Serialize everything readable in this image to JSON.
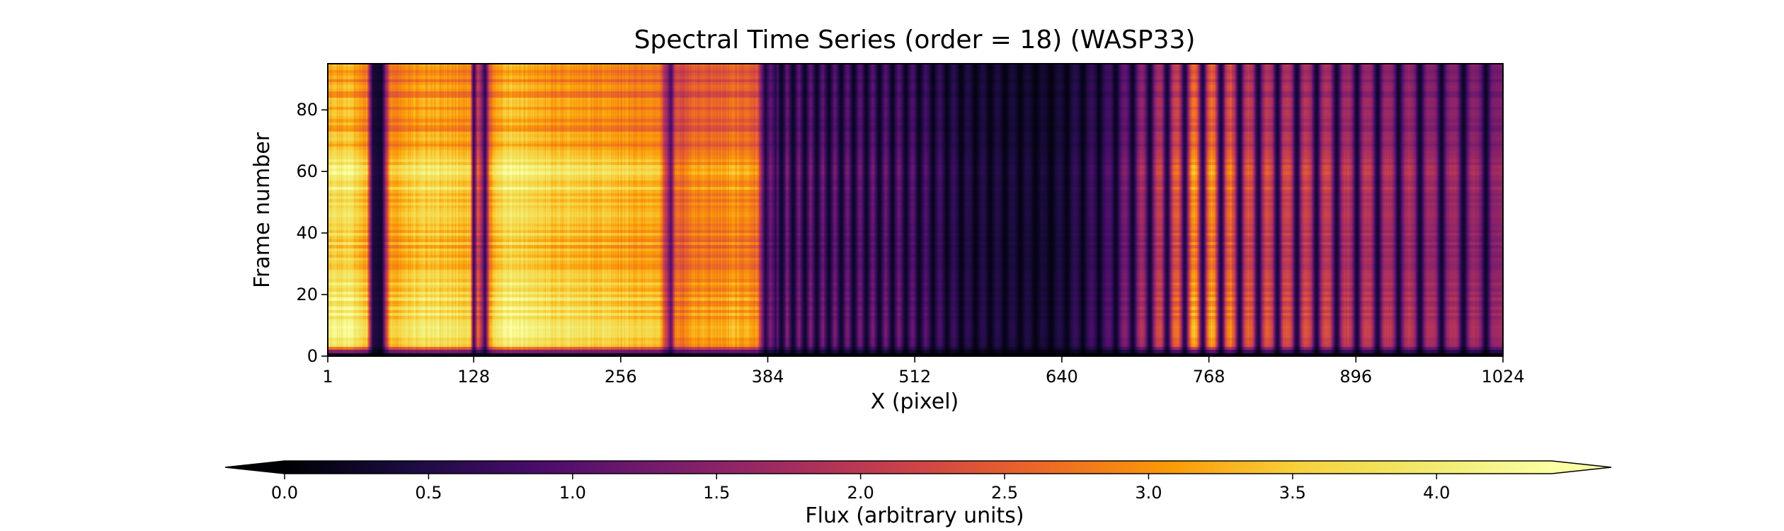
{
  "chart_data": {
    "type": "heatmap",
    "title": "Spectral Time Series (order = 18) (WASP33)",
    "xlabel": "X (pixel)",
    "ylabel": "Frame number",
    "xlim": [
      1,
      1024
    ],
    "ylim": [
      0,
      95
    ],
    "xticks": [
      1,
      128,
      256,
      384,
      512,
      640,
      768,
      896,
      1024
    ],
    "yticks": [
      0,
      20,
      40,
      60,
      80
    ],
    "colormap": "inferno",
    "colorbar": {
      "label": "Flux (arbitrary units)",
      "range": [
        0.0,
        4.4
      ],
      "ticks": [
        "0.0",
        "0.5",
        "1.0",
        "1.5",
        "2.0",
        "2.5",
        "3.0",
        "3.5",
        "4.0"
      ],
      "extend": "both",
      "orientation": "horizontal"
    },
    "flux_profile_x": [
      1,
      20,
      35,
      40,
      48,
      55,
      70,
      100,
      125,
      128,
      132,
      138,
      142,
      148,
      160,
      200,
      240,
      260,
      290,
      300,
      304,
      308,
      320,
      340,
      360,
      375,
      382,
      386,
      392
    ],
    "flux_profile_value": [
      3.9,
      4.0,
      3.5,
      0.5,
      0.3,
      3.3,
      3.7,
      3.8,
      3.6,
      0.6,
      2.7,
      0.7,
      3.0,
      3.8,
      4.1,
      3.7,
      3.6,
      3.5,
      3.4,
      1.0,
      2.9,
      2.6,
      3.1,
      3.0,
      3.2,
      2.9,
      0.4,
      1.4,
      0.5
    ],
    "line_region": {
      "x_start": 392,
      "x_end": 1024,
      "line_spacing_start": 10,
      "line_spacing_end": 20,
      "continuum_flux": [
        [
          392,
          1.6
        ],
        [
          500,
          1.3
        ],
        [
          560,
          0.6
        ],
        [
          630,
          0.4
        ],
        [
          680,
          1.0
        ],
        [
          730,
          2.4
        ],
        [
          760,
          3.4
        ],
        [
          800,
          2.5
        ],
        [
          900,
          2.0
        ],
        [
          1024,
          1.6
        ]
      ]
    },
    "frame_modulation_y": [
      0,
      3,
      8,
      15,
      25,
      35,
      45,
      55,
      61,
      66,
      75,
      85,
      95
    ],
    "frame_modulation_value": [
      0.05,
      0.95,
      1.0,
      1.02,
      0.97,
      0.9,
      0.95,
      1.0,
      1.03,
      0.86,
      0.82,
      0.8,
      0.78
    ],
    "grid": false
  }
}
